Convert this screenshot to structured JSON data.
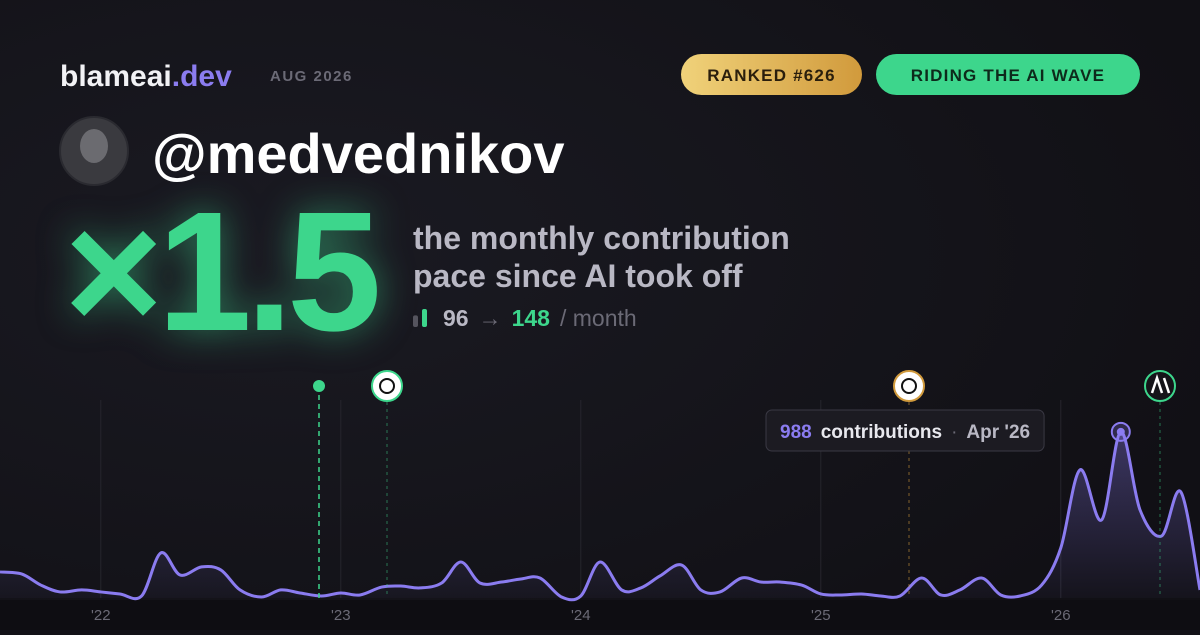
{
  "brand": {
    "name": "blameai",
    "tld": ".dev",
    "date": "AUG 2026"
  },
  "badges": {
    "rank": "RANKED #626",
    "status": "RIDING THE AI WAVE"
  },
  "profile": {
    "handle": "@medvednikov"
  },
  "headline": {
    "multiplier": "×1.5",
    "caption_line1": "the monthly contribution",
    "caption_line2": "pace since AI took off",
    "before": 96,
    "arrow": "→",
    "after": 148,
    "unit": "/ month"
  },
  "tooltip": {
    "label": "contributions",
    "separator": "·",
    "date": "Apr '26"
  },
  "chart_data": {
    "type": "area",
    "x": [
      21.58,
      21.67,
      21.75,
      21.83,
      21.92,
      22.0,
      22.08,
      22.17,
      22.25,
      22.33,
      22.42,
      22.5,
      22.58,
      22.67,
      22.75,
      22.83,
      22.92,
      23.0,
      23.08,
      23.17,
      23.25,
      23.33,
      23.42,
      23.5,
      23.58,
      23.67,
      23.75,
      23.83,
      23.92,
      24.0,
      24.08,
      24.17,
      24.25,
      24.33,
      24.42,
      24.5,
      24.58,
      24.67,
      24.75,
      24.83,
      24.92,
      25.0,
      25.08,
      25.17,
      25.25,
      25.33,
      25.42,
      25.5,
      25.58,
      25.67,
      25.75,
      25.83,
      25.92,
      26.0,
      26.08,
      26.17,
      26.25,
      26.33,
      26.42,
      26.5,
      26.58
    ],
    "series": [
      {
        "name": "contributions",
        "color": "#8b7cf0",
        "values": [
          155,
          143,
          77,
          36,
          48,
          36,
          24,
          12,
          268,
          137,
          185,
          167,
          48,
          6,
          48,
          30,
          12,
          30,
          18,
          65,
          71,
          60,
          89,
          214,
          89,
          95,
          113,
          119,
          6,
          12,
          214,
          48,
          60,
          131,
          196,
          48,
          36,
          119,
          95,
          95,
          77,
          24,
          18,
          24,
          12,
          12,
          119,
          18,
          48,
          119,
          18,
          12,
          77,
          298,
          762,
          464,
          988,
          524,
          369,
          631,
          48
        ]
      }
    ],
    "xlim": [
      21.58,
      26.58
    ],
    "ylim": [
      0,
      1100
    ],
    "xticks": [
      {
        "value": 22,
        "label": "'22"
      },
      {
        "value": 23,
        "label": "'23"
      },
      {
        "value": 24,
        "label": "'24"
      },
      {
        "value": 25,
        "label": "'25"
      },
      {
        "value": 26,
        "label": "'26"
      }
    ],
    "grid": true
  }
}
